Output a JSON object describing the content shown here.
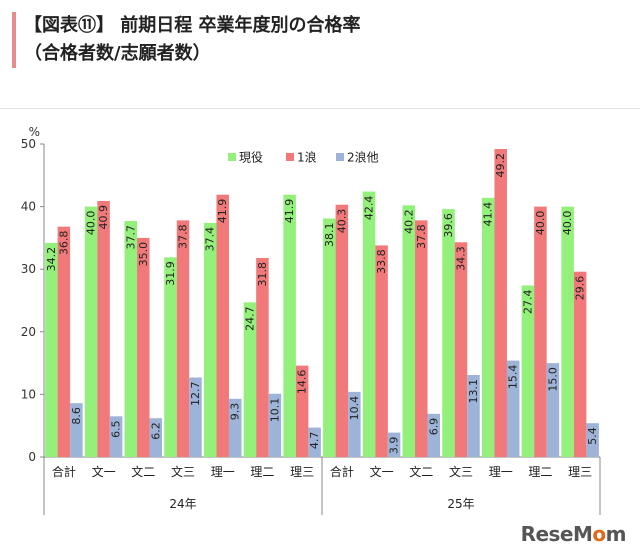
{
  "header": {
    "title_line1": "【図表⑪】 前期日程 卒業年度別の合格率",
    "title_line2": "（合格者数/志願者数）"
  },
  "brand": {
    "part1": "ReseM",
    "part2": "o",
    "part3": "m"
  },
  "colors": {
    "現役": "#93f07a",
    "1浪": "#f2797a",
    "2浪他": "#9db4d8"
  },
  "chart_data": {
    "type": "bar",
    "ylabel": "%",
    "ylim": [
      0,
      50
    ],
    "yticks": [
      0,
      10,
      20,
      30,
      40,
      50
    ],
    "legend_position": "top-center",
    "grid": false,
    "groups": [
      "24年",
      "25年"
    ],
    "categories": [
      "合計",
      "文一",
      "文二",
      "文三",
      "理一",
      "理二",
      "理三",
      "合計",
      "文一",
      "文二",
      "文三",
      "理一",
      "理二",
      "理三"
    ],
    "category_group": [
      "24年",
      "24年",
      "24年",
      "24年",
      "24年",
      "24年",
      "24年",
      "25年",
      "25年",
      "25年",
      "25年",
      "25年",
      "25年",
      "25年"
    ],
    "series": [
      {
        "name": "現役",
        "values": [
          34.2,
          40.0,
          37.7,
          31.9,
          37.4,
          24.7,
          41.9,
          38.1,
          42.4,
          40.2,
          39.6,
          41.4,
          27.4,
          40.0
        ],
        "labels": [
          "34.2",
          "40.0",
          "37.7",
          "31.9",
          "37.4",
          "24.7",
          "41.9",
          "38.1",
          "42.4",
          "40.2",
          "39.6",
          "41.4",
          "27.4",
          "40.0"
        ]
      },
      {
        "name": "1浪",
        "values": [
          36.8,
          40.9,
          35.0,
          37.8,
          41.9,
          31.8,
          14.6,
          40.3,
          33.8,
          37.8,
          34.3,
          49.2,
          40.0,
          29.6
        ],
        "labels": [
          "36.8",
          "40.9",
          "35.0",
          "37.8",
          "41.9",
          "31.8",
          "14.6",
          "40.3",
          "33.8",
          "37.8",
          "34.3",
          "49.2",
          "40.0",
          "29.6"
        ]
      },
      {
        "name": "2浪他",
        "values": [
          8.6,
          6.5,
          6.2,
          12.7,
          9.3,
          10.1,
          4.7,
          10.4,
          3.9,
          6.9,
          13.1,
          15.4,
          15.0,
          5.4
        ],
        "labels": [
          "8.6",
          "6.5",
          "6.2",
          "12.7",
          "9.3",
          "10.1",
          "4.7",
          "10.4",
          "3.9",
          "6.9",
          "13.1",
          "15.4",
          "15.0",
          "5.4"
        ]
      }
    ]
  }
}
